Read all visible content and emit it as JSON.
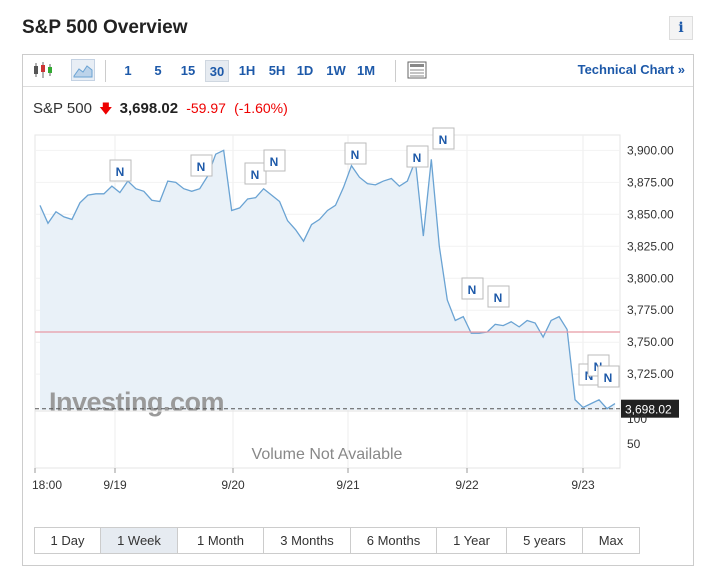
{
  "page": {
    "title": "S&P 500 Overview",
    "info_label": "i"
  },
  "toolbar": {
    "intervals": [
      "1",
      "5",
      "15",
      "30",
      "1H",
      "5H",
      "1D",
      "1W",
      "1M"
    ],
    "active_interval": "30",
    "technical_link": "Technical Chart »",
    "icons": [
      "candlestick-icon",
      "area-chart-icon",
      "table-view-icon"
    ]
  },
  "quote": {
    "name": "S&P 500",
    "price": "3,698.02",
    "change": "-59.97",
    "change_pct": "(-1.60%)",
    "direction_icon": "down-arrow-icon",
    "color_down": "#e00000"
  },
  "chart_data": {
    "type": "area",
    "y_ticks": [
      "3,900.00",
      "3,875.00",
      "3,850.00",
      "3,825.00",
      "3,800.00",
      "3,775.00",
      "3,750.00",
      "3,725.00"
    ],
    "y_range": [
      3697,
      3912
    ],
    "x_labels": [
      "18:00",
      "9/19",
      "9/20",
      "9/21",
      "9/22",
      "9/23"
    ],
    "current_price_label": "3,698.02",
    "previous_close": 3758,
    "volume_ticks": [
      "100",
      "50"
    ],
    "volume_message": "Volume Not Available",
    "watermark": "Investing.com",
    "news_marker_label": "N",
    "series": [
      {
        "values": [
          3857,
          3843,
          3852,
          3848,
          3846,
          3859,
          3865,
          3866,
          3866,
          3872,
          3867,
          3876,
          3870,
          3868,
          3861,
          3860,
          3876,
          3875,
          3870,
          3868,
          3870,
          3880,
          3897,
          3900,
          3853,
          3855,
          3862,
          3863,
          3870,
          3865,
          3860,
          3845,
          3838,
          3829,
          3842,
          3846,
          3853,
          3857,
          3871,
          3888,
          3879,
          3874,
          3873,
          3876,
          3878,
          3872,
          3876,
          3892,
          3833,
          3893,
          3825,
          3783,
          3767,
          3770,
          3757,
          3757,
          3758,
          3764,
          3763,
          3766,
          3762,
          3767,
          3765,
          3754,
          3767,
          3770,
          3760,
          3705,
          3699,
          3702,
          3705,
          3698,
          3702
        ]
      }
    ],
    "colors": {
      "line": "#6aa3d3",
      "fill": "#e9f1f8",
      "prev_close": "#e89aa5",
      "price_label_bg": "#222222",
      "marker": "#1d59a9"
    }
  },
  "range_buttons": [
    "1 Day",
    "1 Week",
    "1 Month",
    "3 Months",
    "6 Months",
    "1 Year",
    "5 years",
    "Max"
  ],
  "active_range": "1 Week"
}
